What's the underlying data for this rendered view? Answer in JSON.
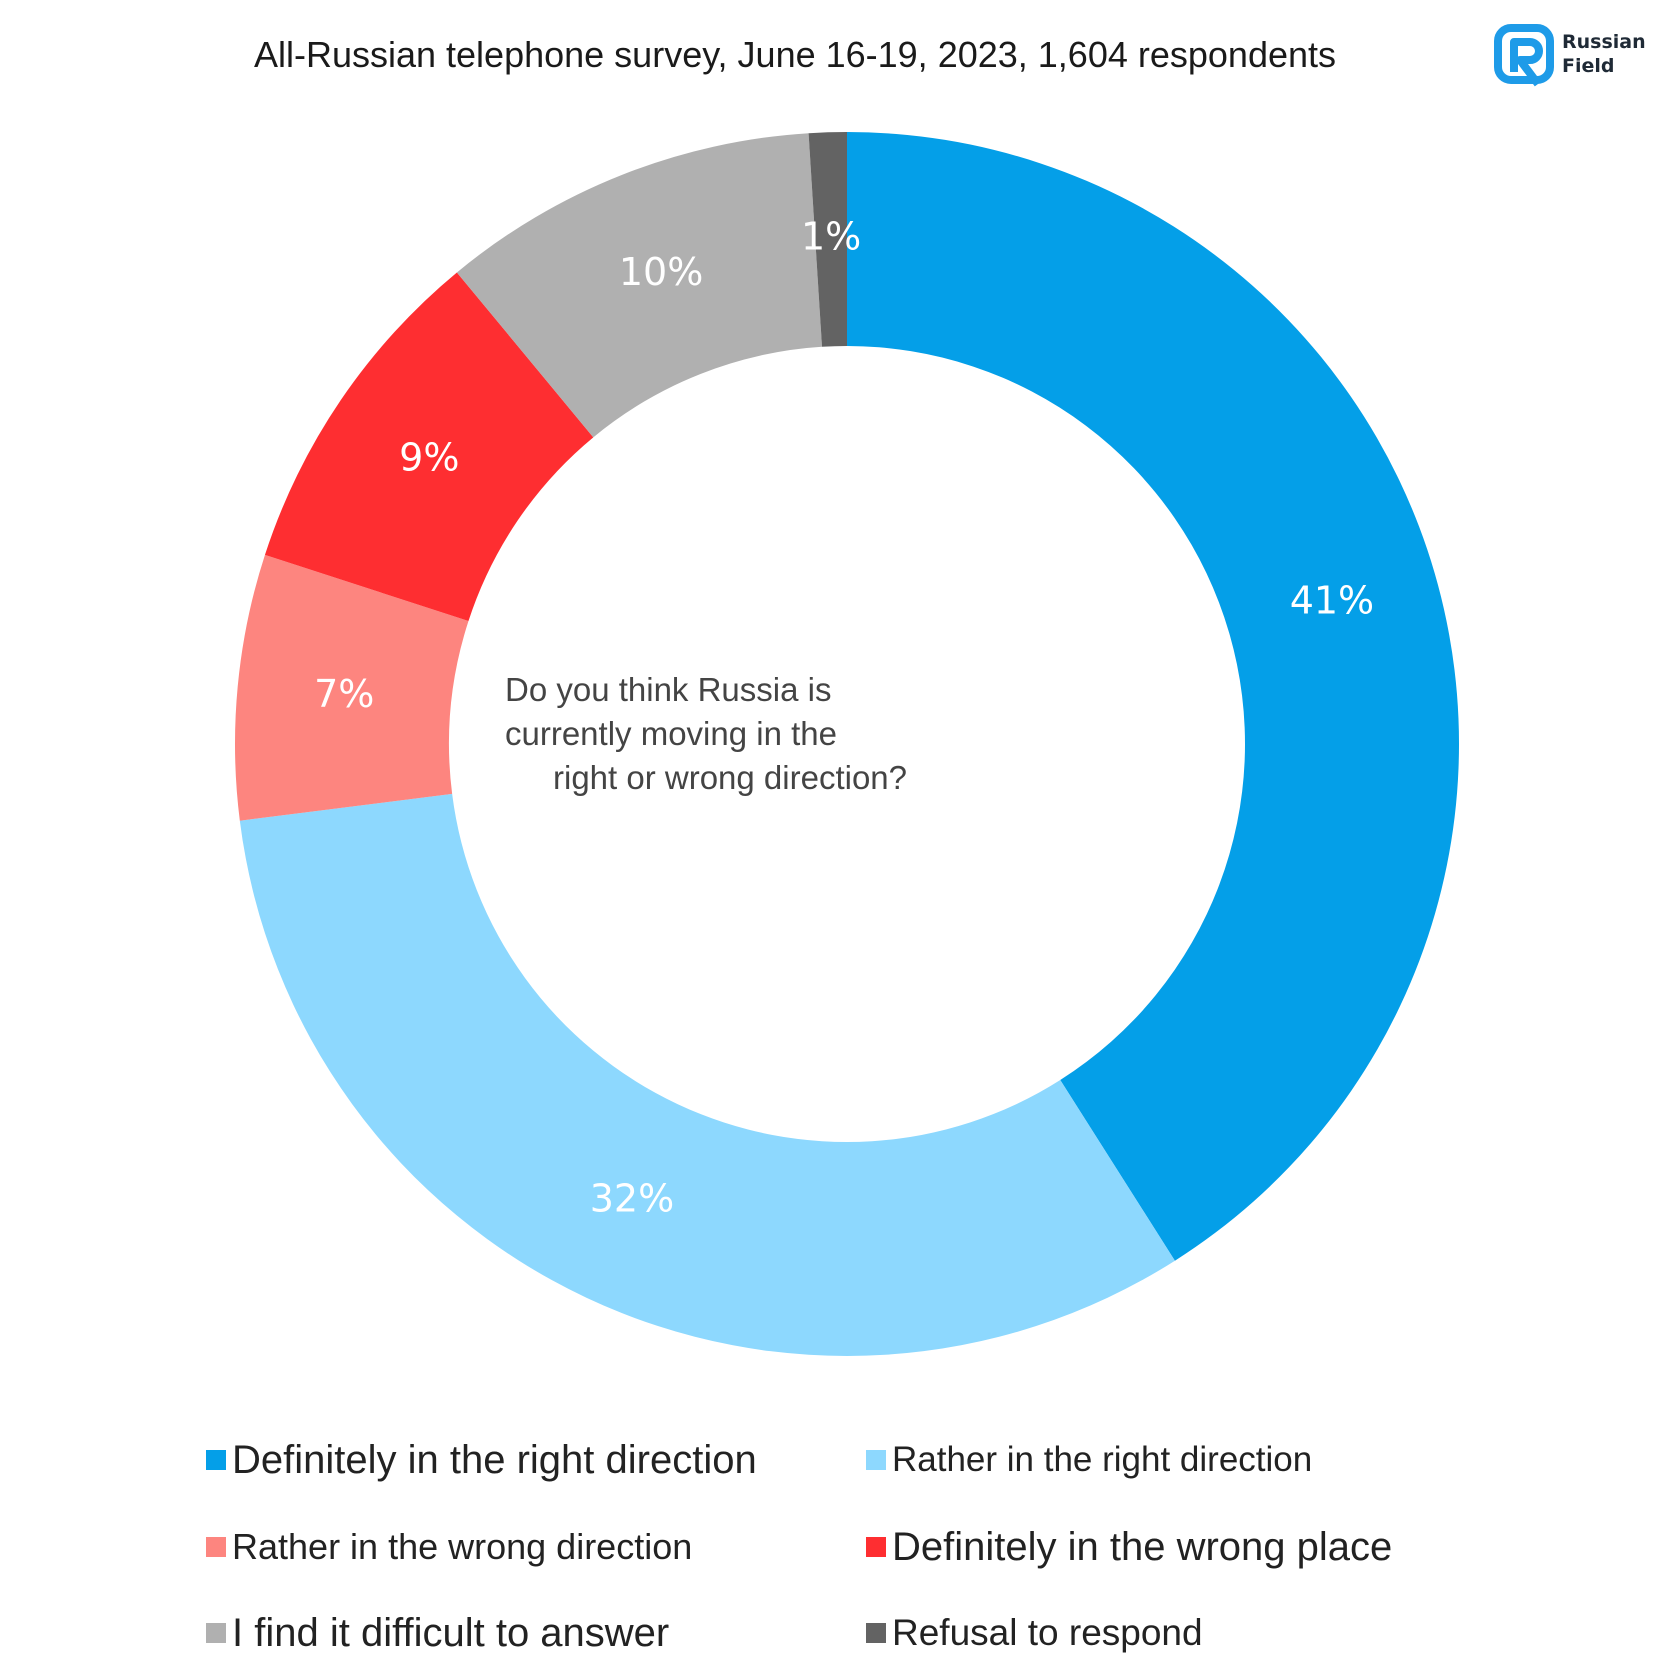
{
  "header": {
    "title": "All-Russian telephone survey, June 16-19, 2023, 1,604 respondents"
  },
  "logo": {
    "line1": "Russian",
    "line2": "Field",
    "color": "#1e9be8"
  },
  "question": {
    "line1": "Do you think Russia is",
    "line2": "currently moving in the",
    "line3": "right or wrong direction?"
  },
  "chart_data": {
    "type": "pie",
    "variant": "donut",
    "title": "All-Russian telephone survey, June 16-19, 2023, 1,604 respondents",
    "center_text": "Do you think Russia is currently moving in the right or wrong direction?",
    "start": "12 o'clock",
    "direction": "clockwise",
    "legend_position": "bottom",
    "series": [
      {
        "name": "Definitely in the right direction",
        "value": 41,
        "label": "41%",
        "color": "#049fe8"
      },
      {
        "name": "Rather in the right direction",
        "value": 32,
        "label": "32%",
        "color": "#8dd8fe"
      },
      {
        "name": "Rather in the wrong direction",
        "value": 7,
        "label": "7%",
        "color": "#fd857f"
      },
      {
        "name": "Definitely in the wrong place",
        "value": 9,
        "label": "9%",
        "color": "#fe2e31"
      },
      {
        "name": "I find it difficult to answer",
        "value": 10,
        "label": "10%",
        "color": "#b0b0b0"
      },
      {
        "name": "Refusal to respond",
        "value": 1,
        "label": "1%",
        "color": "#636363"
      }
    ]
  }
}
